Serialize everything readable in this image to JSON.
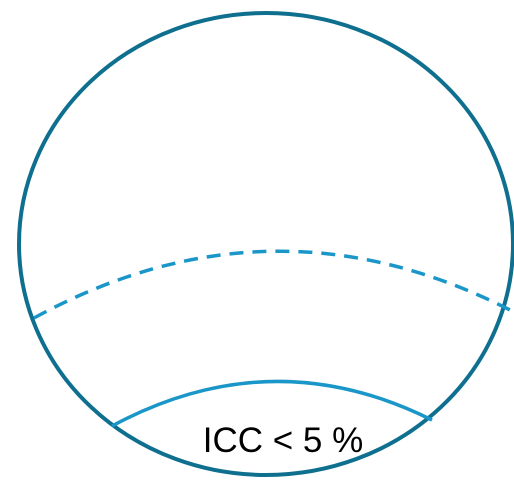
{
  "diagram": {
    "region_label": "ICC < 5 %",
    "colors": {
      "outline": "#0f6f8f",
      "dashed_arc": "#1a96c8",
      "solid_arc": "#1a96c8",
      "text": "#000000",
      "background": "#ffffff"
    }
  }
}
